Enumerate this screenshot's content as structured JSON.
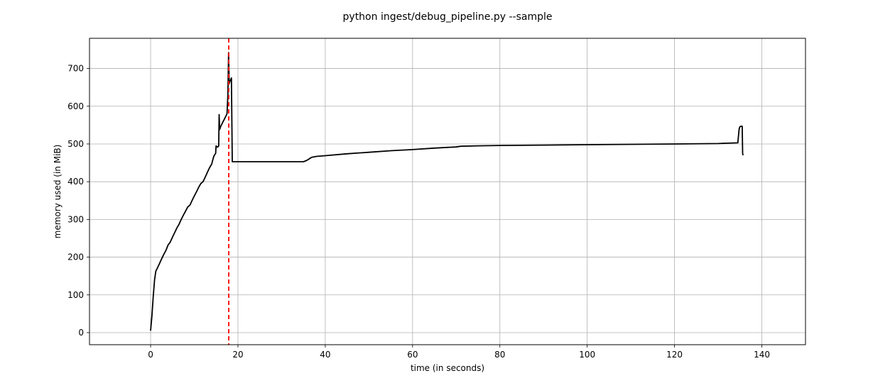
{
  "chart_data": {
    "type": "line",
    "title": "python ingest/debug_pipeline.py --sample",
    "xlabel": "time (in seconds)",
    "ylabel": "memory used (in MiB)",
    "xlim": [
      -14,
      150
    ],
    "ylim": [
      -32,
      780
    ],
    "xticks": [
      0,
      20,
      40,
      60,
      80,
      100,
      120,
      140
    ],
    "yticks": [
      0,
      100,
      200,
      300,
      400,
      500,
      600,
      700
    ],
    "grid": true,
    "legend": "none",
    "series": [
      {
        "color": "#000000",
        "x": [
          0.0,
          0.3,
          0.6,
          0.9,
          1.2,
          1.5,
          2.0,
          2.5,
          3.0,
          3.5,
          4.0,
          4.5,
          5.0,
          5.5,
          6.0,
          6.5,
          7.0,
          7.5,
          8.0,
          8.5,
          9.0,
          9.5,
          10.0,
          10.5,
          11.0,
          11.5,
          12.0,
          12.5,
          13.0,
          13.5,
          14.0,
          14.3,
          14.5,
          14.7,
          14.9,
          15.0,
          15.2,
          15.4,
          15.6,
          15.7,
          15.8,
          16.0,
          16.5,
          17.0,
          17.5,
          17.7,
          17.85,
          18.0,
          18.1,
          18.3,
          18.5,
          18.7,
          19.0,
          20.0,
          25.0,
          30.0,
          35.0,
          35.5,
          36.0,
          36.5,
          37.0,
          38.0,
          40.0,
          45.0,
          50.0,
          55.0,
          60.0,
          65.0,
          68.0,
          70.0,
          71.0,
          75.0,
          80.0,
          90.0,
          100.0,
          110.0,
          120.0,
          130.0,
          132.0,
          134.5,
          134.8,
          135.0,
          135.3,
          135.5,
          135.6,
          135.7
        ],
        "y": [
          5,
          45,
          95,
          140,
          163,
          170,
          182,
          195,
          207,
          218,
          232,
          240,
          253,
          265,
          277,
          287,
          300,
          311,
          322,
          333,
          338,
          350,
          362,
          373,
          385,
          395,
          400,
          412,
          425,
          437,
          447,
          460,
          468,
          472,
          475,
          495,
          492,
          492,
          495,
          578,
          538,
          545,
          557,
          568,
          580,
          630,
          742,
          660,
          665,
          668,
          675,
          453,
          453,
          453,
          453,
          453,
          453,
          455,
          458,
          462,
          465,
          467,
          469,
          474,
          478,
          482,
          485,
          489,
          491,
          492,
          494,
          495,
          496,
          497,
          498,
          499,
          500,
          501,
          502,
          503,
          540,
          546,
          547,
          547,
          475,
          470
        ]
      }
    ],
    "vline": {
      "x": 17.9,
      "color": "#ff0000",
      "style": "dashed"
    }
  }
}
